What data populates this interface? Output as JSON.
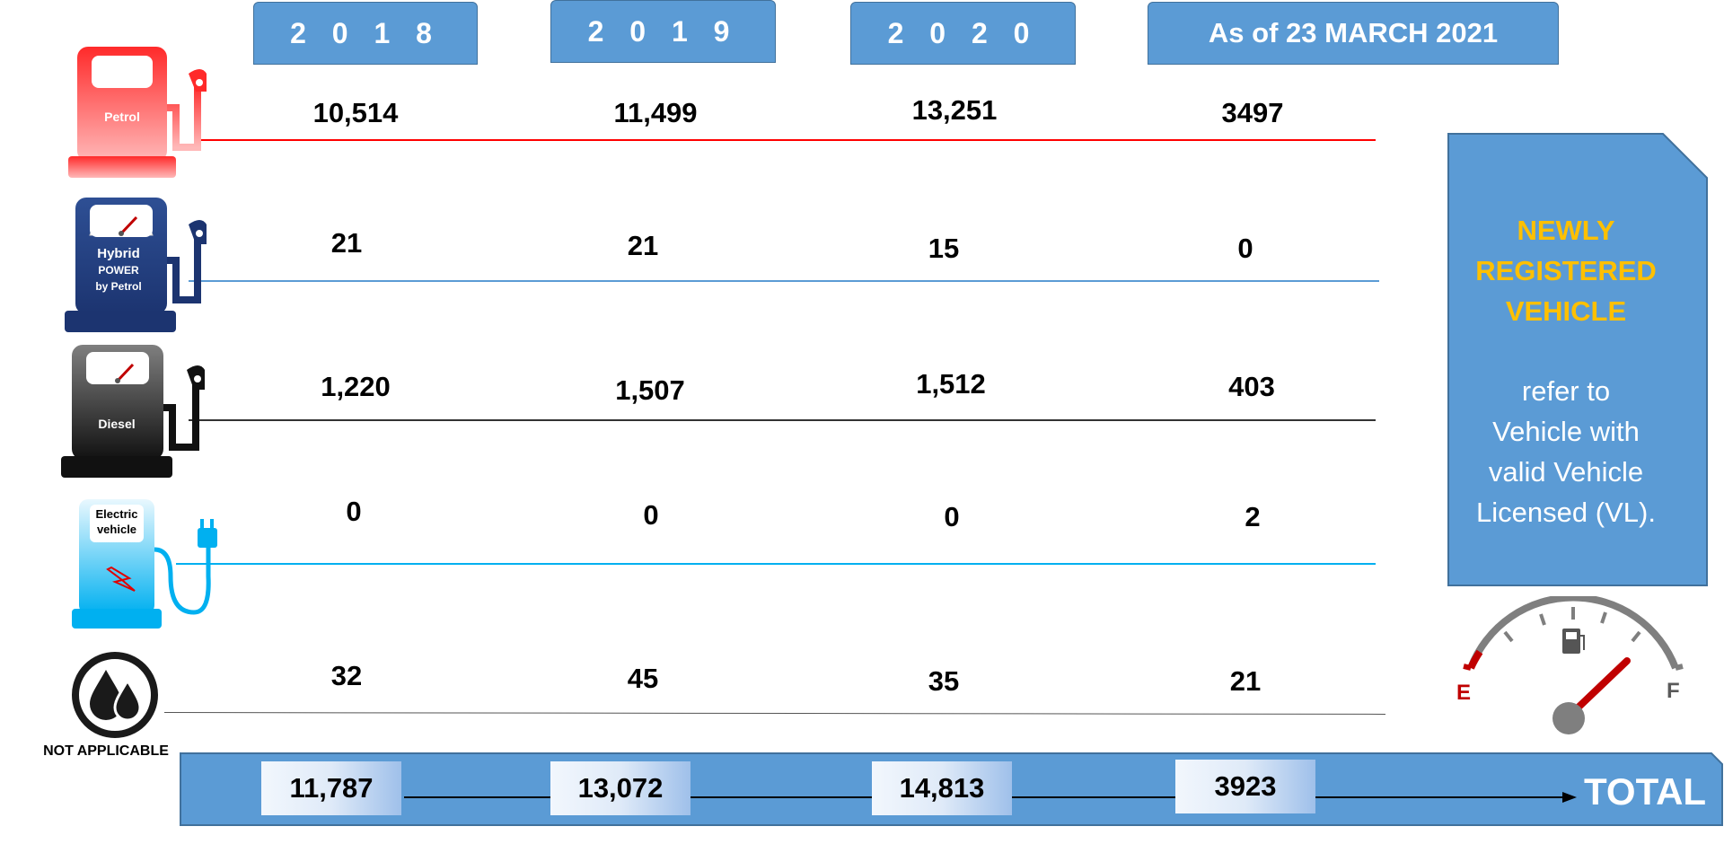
{
  "columns": {
    "y2018": "2 0 1 8",
    "y2019": "2 0 1 9",
    "y2020": "2 0 2 0",
    "current": "As of 23 MARCH  2021"
  },
  "rows": [
    {
      "label": "Petrol",
      "icon": "petrol-pump-icon",
      "color": "#ff0000",
      "values": [
        "10,514",
        "11,499",
        "13,251",
        "3497"
      ]
    },
    {
      "label_line1": "Hybrid",
      "label_line2": "POWER",
      "label_line3": "by Petrol",
      "icon": "hybrid-pump-icon",
      "color": "#5b9bd5",
      "values": [
        "21",
        "21",
        "15",
        "0"
      ]
    },
    {
      "label": "Diesel",
      "icon": "diesel-pump-icon",
      "color": "#000000",
      "values": [
        "1,220",
        "1,507",
        "1,512",
        "403"
      ]
    },
    {
      "label_line1": "Electric",
      "label_line2": "vehicle",
      "icon": "electric-charger-icon",
      "color": "#00b0f0",
      "values": [
        "0",
        "0",
        "0",
        "2"
      ]
    },
    {
      "label": "NOT APPLICABLE",
      "icon": "oil-drops-icon",
      "color": "#000000",
      "values": [
        "32",
        "45",
        "35",
        "21"
      ]
    }
  ],
  "totals": {
    "label": "TOTAL",
    "values": [
      "11,787",
      "13,072",
      "14,813",
      "3923"
    ]
  },
  "note": {
    "heading_line1": "NEWLY",
    "heading_line2": "REGISTERED",
    "heading_line3": "VEHICLE",
    "body_line1": "refer to",
    "body_line2": "Vehicle with",
    "body_line3": "valid Vehicle",
    "body_line4": "Licensed (VL).",
    "heading_color": "#ffc000"
  },
  "gauge": {
    "empty_label": "E",
    "full_label": "F",
    "icon": "fuel-gauge-icon"
  }
}
